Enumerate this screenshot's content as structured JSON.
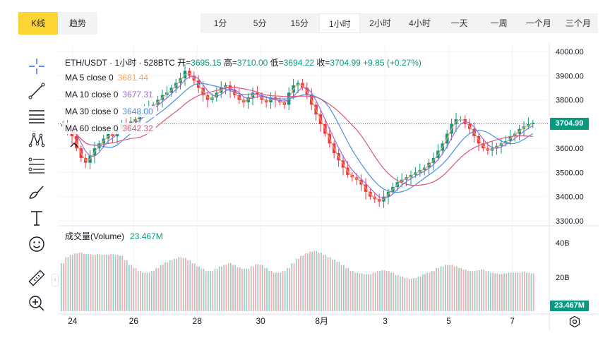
{
  "chart_tabs": [
    {
      "label": "K线",
      "active": true
    },
    {
      "label": "趋势",
      "active": false
    }
  ],
  "intervals": [
    {
      "label": "1分",
      "active": false
    },
    {
      "label": "5分",
      "active": false
    },
    {
      "label": "15分",
      "active": false
    },
    {
      "label": "1小时",
      "active": true
    },
    {
      "label": "2小时",
      "active": false
    },
    {
      "label": "4小时",
      "active": false
    },
    {
      "label": "一天",
      "active": false
    },
    {
      "label": "一周",
      "active": false
    },
    {
      "label": "一个月",
      "active": false
    },
    {
      "label": "三个月",
      "active": false
    }
  ],
  "tools": [
    "crosshair-icon",
    "trendline-icon",
    "horizontal-lines-icon",
    "pattern-icon",
    "fib-icon",
    "brush-icon",
    "text-icon",
    "emoji-icon",
    "ruler-icon",
    "zoom-in-icon"
  ],
  "legend": {
    "symbol": "ETH/USDT · 1小时 · 528BTC",
    "open_label": "开=",
    "open": "3695.15",
    "high_label": "高=",
    "high": "3710.00",
    "low_label": "低=",
    "low": "3694.22",
    "close_label": "收=",
    "close": "3704.99",
    "change": "+9.85 (+0.27%)"
  },
  "ma": [
    {
      "label": "MA 5 close 0",
      "value": "3681.44",
      "color": "#f0a262"
    },
    {
      "label": "MA 10 close 0",
      "value": "3677.31",
      "color": "#9c6ade"
    },
    {
      "label": "MA 30 close 0",
      "value": "3648.00",
      "color": "#4a8ee6"
    },
    {
      "label": "MA 60 close 0",
      "value": "3642.32",
      "color": "#d9577b"
    }
  ],
  "volume": {
    "label": "成交量(Volume)",
    "value": "23.467M",
    "badge": "23.467M"
  },
  "current_price_badge": "3704.99",
  "colors": {
    "up": "#089981",
    "down": "#f23645",
    "up_vol": "#8fd4c6",
    "down_vol": "#f7a9ae",
    "accent": "#fcd535"
  },
  "chart_data": {
    "type": "candlestick",
    "price_axis": {
      "ticks": [
        "4000.00",
        "3900.00",
        "3800.00",
        "3700.00",
        "3600.00",
        "3500.00",
        "3400.00",
        "3300.00"
      ],
      "range": [
        3300,
        4000
      ]
    },
    "volume_axis": {
      "ticks": [
        "40B",
        "20B"
      ]
    },
    "x_ticks": [
      {
        "label": "24",
        "pos": 0.03
      },
      {
        "label": "26",
        "pos": 0.155
      },
      {
        "label": "28",
        "pos": 0.285
      },
      {
        "label": "30",
        "pos": 0.415
      },
      {
        "label": "8月",
        "pos": 0.54
      },
      {
        "label": "3",
        "pos": 0.67
      },
      {
        "label": "5",
        "pos": 0.8
      },
      {
        "label": "7",
        "pos": 0.93
      }
    ],
    "close_series": [
      3700,
      3680,
      3650,
      3600,
      3560,
      3540,
      3570,
      3600,
      3620,
      3640,
      3660,
      3650,
      3680,
      3700,
      3690,
      3710,
      3720,
      3740,
      3760,
      3770,
      3780,
      3800,
      3820,
      3830,
      3850,
      3870,
      3890,
      3920,
      3900,
      3880,
      3850,
      3820,
      3800,
      3810,
      3830,
      3850,
      3860,
      3840,
      3820,
      3800,
      3790,
      3810,
      3830,
      3820,
      3800,
      3790,
      3810,
      3800,
      3790,
      3780,
      3830,
      3860,
      3870,
      3850,
      3820,
      3780,
      3740,
      3700,
      3660,
      3620,
      3580,
      3550,
      3520,
      3490,
      3480,
      3470,
      3450,
      3420,
      3400,
      3390,
      3380,
      3400,
      3420,
      3440,
      3460,
      3470,
      3480,
      3490,
      3500,
      3510,
      3520,
      3540,
      3560,
      3590,
      3620,
      3660,
      3700,
      3720,
      3720,
      3700,
      3680,
      3650,
      3620,
      3600,
      3590,
      3600,
      3610,
      3620,
      3630,
      3650,
      3660,
      3680,
      3690,
      3700,
      3705
    ],
    "volume_series": [
      0.62,
      0.7,
      0.73,
      0.75,
      0.76,
      0.74,
      0.74,
      0.73,
      0.74,
      0.73,
      0.73,
      0.74,
      0.73,
      0.72,
      0.66,
      0.6,
      0.56,
      0.52,
      0.5,
      0.5,
      0.52,
      0.56,
      0.6,
      0.63,
      0.66,
      0.68,
      0.7,
      0.69,
      0.66,
      0.62,
      0.58,
      0.55,
      0.52,
      0.52,
      0.55,
      0.58,
      0.6,
      0.62,
      0.6,
      0.57,
      0.55,
      0.55,
      0.58,
      0.61,
      0.6,
      0.56,
      0.52,
      0.5,
      0.5,
      0.52,
      0.56,
      0.62,
      0.68,
      0.72,
      0.75,
      0.77,
      0.78,
      0.76,
      0.73,
      0.7,
      0.67,
      0.64,
      0.6,
      0.56,
      0.52,
      0.5,
      0.49,
      0.48,
      0.48,
      0.5,
      0.52,
      0.53,
      0.52,
      0.5,
      0.47,
      0.45,
      0.43,
      0.42,
      0.43,
      0.45,
      0.48,
      0.5,
      0.52,
      0.56,
      0.58,
      0.6,
      0.6,
      0.58,
      0.56,
      0.54,
      0.52,
      0.52,
      0.53,
      0.54,
      0.52,
      0.5,
      0.49,
      0.48,
      0.49,
      0.5,
      0.5,
      0.5,
      0.51,
      0.5,
      0.49
    ]
  }
}
